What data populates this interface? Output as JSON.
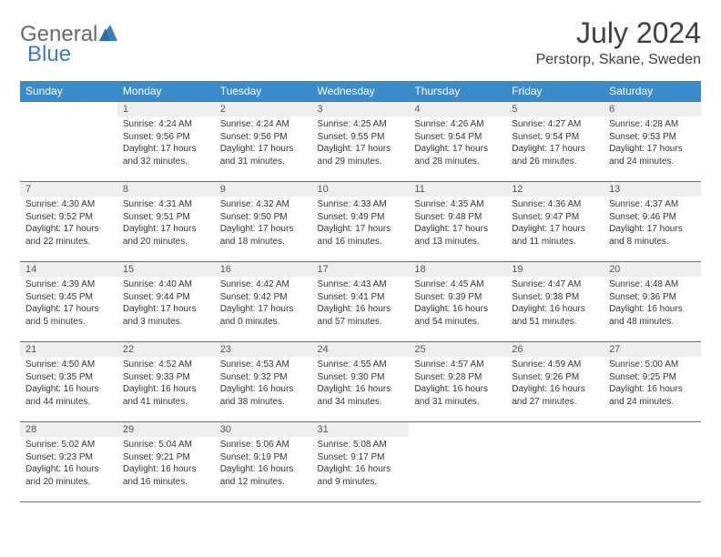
{
  "logo": {
    "word1": "General",
    "word2": "Blue"
  },
  "title": "July 2024",
  "location": "Perstorp, Skane, Sweden",
  "days_of_week": [
    "Sunday",
    "Monday",
    "Tuesday",
    "Wednesday",
    "Thursday",
    "Friday",
    "Saturday"
  ],
  "colors": {
    "header_bg": "#3a8bc9",
    "header_text": "#ffffff",
    "border": "#3a7fb8",
    "daynum_bg": "#eeeeee",
    "text": "#333333",
    "logo_gray": "#6a6a6a",
    "logo_blue": "#3a7fb8"
  },
  "typography": {
    "title_fontsize": 32,
    "location_fontsize": 16,
    "dow_fontsize": 12,
    "daynum_fontsize": 11,
    "body_fontsize": 10
  },
  "weeks": [
    [
      null,
      {
        "n": "1",
        "sr": "Sunrise: 4:24 AM",
        "ss": "Sunset: 9:56 PM",
        "d1": "Daylight: 17 hours",
        "d2": "and 32 minutes."
      },
      {
        "n": "2",
        "sr": "Sunrise: 4:24 AM",
        "ss": "Sunset: 9:56 PM",
        "d1": "Daylight: 17 hours",
        "d2": "and 31 minutes."
      },
      {
        "n": "3",
        "sr": "Sunrise: 4:25 AM",
        "ss": "Sunset: 9:55 PM",
        "d1": "Daylight: 17 hours",
        "d2": "and 29 minutes."
      },
      {
        "n": "4",
        "sr": "Sunrise: 4:26 AM",
        "ss": "Sunset: 9:54 PM",
        "d1": "Daylight: 17 hours",
        "d2": "and 28 minutes."
      },
      {
        "n": "5",
        "sr": "Sunrise: 4:27 AM",
        "ss": "Sunset: 9:54 PM",
        "d1": "Daylight: 17 hours",
        "d2": "and 26 minutes."
      },
      {
        "n": "6",
        "sr": "Sunrise: 4:28 AM",
        "ss": "Sunset: 9:53 PM",
        "d1": "Daylight: 17 hours",
        "d2": "and 24 minutes."
      }
    ],
    [
      {
        "n": "7",
        "sr": "Sunrise: 4:30 AM",
        "ss": "Sunset: 9:52 PM",
        "d1": "Daylight: 17 hours",
        "d2": "and 22 minutes."
      },
      {
        "n": "8",
        "sr": "Sunrise: 4:31 AM",
        "ss": "Sunset: 9:51 PM",
        "d1": "Daylight: 17 hours",
        "d2": "and 20 minutes."
      },
      {
        "n": "9",
        "sr": "Sunrise: 4:32 AM",
        "ss": "Sunset: 9:50 PM",
        "d1": "Daylight: 17 hours",
        "d2": "and 18 minutes."
      },
      {
        "n": "10",
        "sr": "Sunrise: 4:33 AM",
        "ss": "Sunset: 9:49 PM",
        "d1": "Daylight: 17 hours",
        "d2": "and 16 minutes."
      },
      {
        "n": "11",
        "sr": "Sunrise: 4:35 AM",
        "ss": "Sunset: 9:48 PM",
        "d1": "Daylight: 17 hours",
        "d2": "and 13 minutes."
      },
      {
        "n": "12",
        "sr": "Sunrise: 4:36 AM",
        "ss": "Sunset: 9:47 PM",
        "d1": "Daylight: 17 hours",
        "d2": "and 11 minutes."
      },
      {
        "n": "13",
        "sr": "Sunrise: 4:37 AM",
        "ss": "Sunset: 9:46 PM",
        "d1": "Daylight: 17 hours",
        "d2": "and 8 minutes."
      }
    ],
    [
      {
        "n": "14",
        "sr": "Sunrise: 4:39 AM",
        "ss": "Sunset: 9:45 PM",
        "d1": "Daylight: 17 hours",
        "d2": "and 5 minutes."
      },
      {
        "n": "15",
        "sr": "Sunrise: 4:40 AM",
        "ss": "Sunset: 9:44 PM",
        "d1": "Daylight: 17 hours",
        "d2": "and 3 minutes."
      },
      {
        "n": "16",
        "sr": "Sunrise: 4:42 AM",
        "ss": "Sunset: 9:42 PM",
        "d1": "Daylight: 17 hours",
        "d2": "and 0 minutes."
      },
      {
        "n": "17",
        "sr": "Sunrise: 4:43 AM",
        "ss": "Sunset: 9:41 PM",
        "d1": "Daylight: 16 hours",
        "d2": "and 57 minutes."
      },
      {
        "n": "18",
        "sr": "Sunrise: 4:45 AM",
        "ss": "Sunset: 9:39 PM",
        "d1": "Daylight: 16 hours",
        "d2": "and 54 minutes."
      },
      {
        "n": "19",
        "sr": "Sunrise: 4:47 AM",
        "ss": "Sunset: 9:38 PM",
        "d1": "Daylight: 16 hours",
        "d2": "and 51 minutes."
      },
      {
        "n": "20",
        "sr": "Sunrise: 4:48 AM",
        "ss": "Sunset: 9:36 PM",
        "d1": "Daylight: 16 hours",
        "d2": "and 48 minutes."
      }
    ],
    [
      {
        "n": "21",
        "sr": "Sunrise: 4:50 AM",
        "ss": "Sunset: 9:35 PM",
        "d1": "Daylight: 16 hours",
        "d2": "and 44 minutes."
      },
      {
        "n": "22",
        "sr": "Sunrise: 4:52 AM",
        "ss": "Sunset: 9:33 PM",
        "d1": "Daylight: 16 hours",
        "d2": "and 41 minutes."
      },
      {
        "n": "23",
        "sr": "Sunrise: 4:53 AM",
        "ss": "Sunset: 9:32 PM",
        "d1": "Daylight: 16 hours",
        "d2": "and 38 minutes."
      },
      {
        "n": "24",
        "sr": "Sunrise: 4:55 AM",
        "ss": "Sunset: 9:30 PM",
        "d1": "Daylight: 16 hours",
        "d2": "and 34 minutes."
      },
      {
        "n": "25",
        "sr": "Sunrise: 4:57 AM",
        "ss": "Sunset: 9:28 PM",
        "d1": "Daylight: 16 hours",
        "d2": "and 31 minutes."
      },
      {
        "n": "26",
        "sr": "Sunrise: 4:59 AM",
        "ss": "Sunset: 9:26 PM",
        "d1": "Daylight: 16 hours",
        "d2": "and 27 minutes."
      },
      {
        "n": "27",
        "sr": "Sunrise: 5:00 AM",
        "ss": "Sunset: 9:25 PM",
        "d1": "Daylight: 16 hours",
        "d2": "and 24 minutes."
      }
    ],
    [
      {
        "n": "28",
        "sr": "Sunrise: 5:02 AM",
        "ss": "Sunset: 9:23 PM",
        "d1": "Daylight: 16 hours",
        "d2": "and 20 minutes."
      },
      {
        "n": "29",
        "sr": "Sunrise: 5:04 AM",
        "ss": "Sunset: 9:21 PM",
        "d1": "Daylight: 16 hours",
        "d2": "and 16 minutes."
      },
      {
        "n": "30",
        "sr": "Sunrise: 5:06 AM",
        "ss": "Sunset: 9:19 PM",
        "d1": "Daylight: 16 hours",
        "d2": "and 12 minutes."
      },
      {
        "n": "31",
        "sr": "Sunrise: 5:08 AM",
        "ss": "Sunset: 9:17 PM",
        "d1": "Daylight: 16 hours",
        "d2": "and 9 minutes."
      },
      null,
      null,
      null
    ]
  ]
}
